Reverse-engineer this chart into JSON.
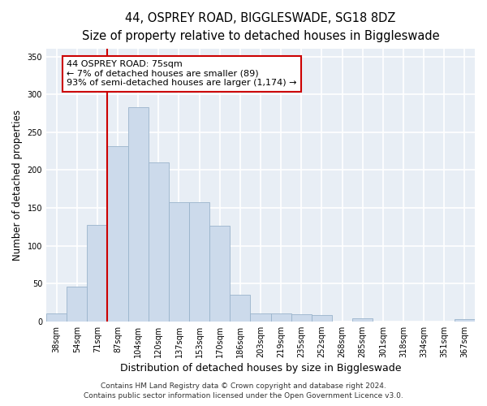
{
  "title_line1": "44, OSPREY ROAD, BIGGLESWADE, SG18 8DZ",
  "title_line2": "Size of property relative to detached houses in Biggleswade",
  "xlabel": "Distribution of detached houses by size in Biggleswade",
  "ylabel": "Number of detached properties",
  "footnote1": "Contains HM Land Registry data © Crown copyright and database right 2024.",
  "footnote2": "Contains public sector information licensed under the Open Government Licence v3.0.",
  "bin_labels": [
    "38sqm",
    "54sqm",
    "71sqm",
    "87sqm",
    "104sqm",
    "120sqm",
    "137sqm",
    "153sqm",
    "170sqm",
    "186sqm",
    "203sqm",
    "219sqm",
    "235sqm",
    "252sqm",
    "268sqm",
    "285sqm",
    "301sqm",
    "318sqm",
    "334sqm",
    "351sqm",
    "367sqm"
  ],
  "bar_values": [
    10,
    46,
    127,
    231,
    283,
    210,
    157,
    157,
    126,
    35,
    10,
    10,
    9,
    8,
    0,
    4,
    0,
    0,
    0,
    0,
    3
  ],
  "bar_color": "#ccdaeb",
  "bar_edge_color": "#9ab4cc",
  "vline_color": "#cc0000",
  "vline_pos": 2.5,
  "annotation_line1": "44 OSPREY ROAD: 75sqm",
  "annotation_line2": "← 7% of detached houses are smaller (89)",
  "annotation_line3": "93% of semi-detached houses are larger (1,174) →",
  "annotation_box_facecolor": "#ffffff",
  "annotation_box_edgecolor": "#cc0000",
  "ylim": [
    0,
    360
  ],
  "yticks": [
    0,
    50,
    100,
    150,
    200,
    250,
    300,
    350
  ],
  "bg_color": "#ffffff",
  "plot_bg_color": "#e8eef5",
  "grid_color": "#ffffff",
  "title_fontsize": 10.5,
  "subtitle_fontsize": 9.5,
  "xlabel_fontsize": 9,
  "ylabel_fontsize": 8.5,
  "tick_fontsize": 7,
  "annotation_fontsize": 8,
  "footnote_fontsize": 6.5
}
